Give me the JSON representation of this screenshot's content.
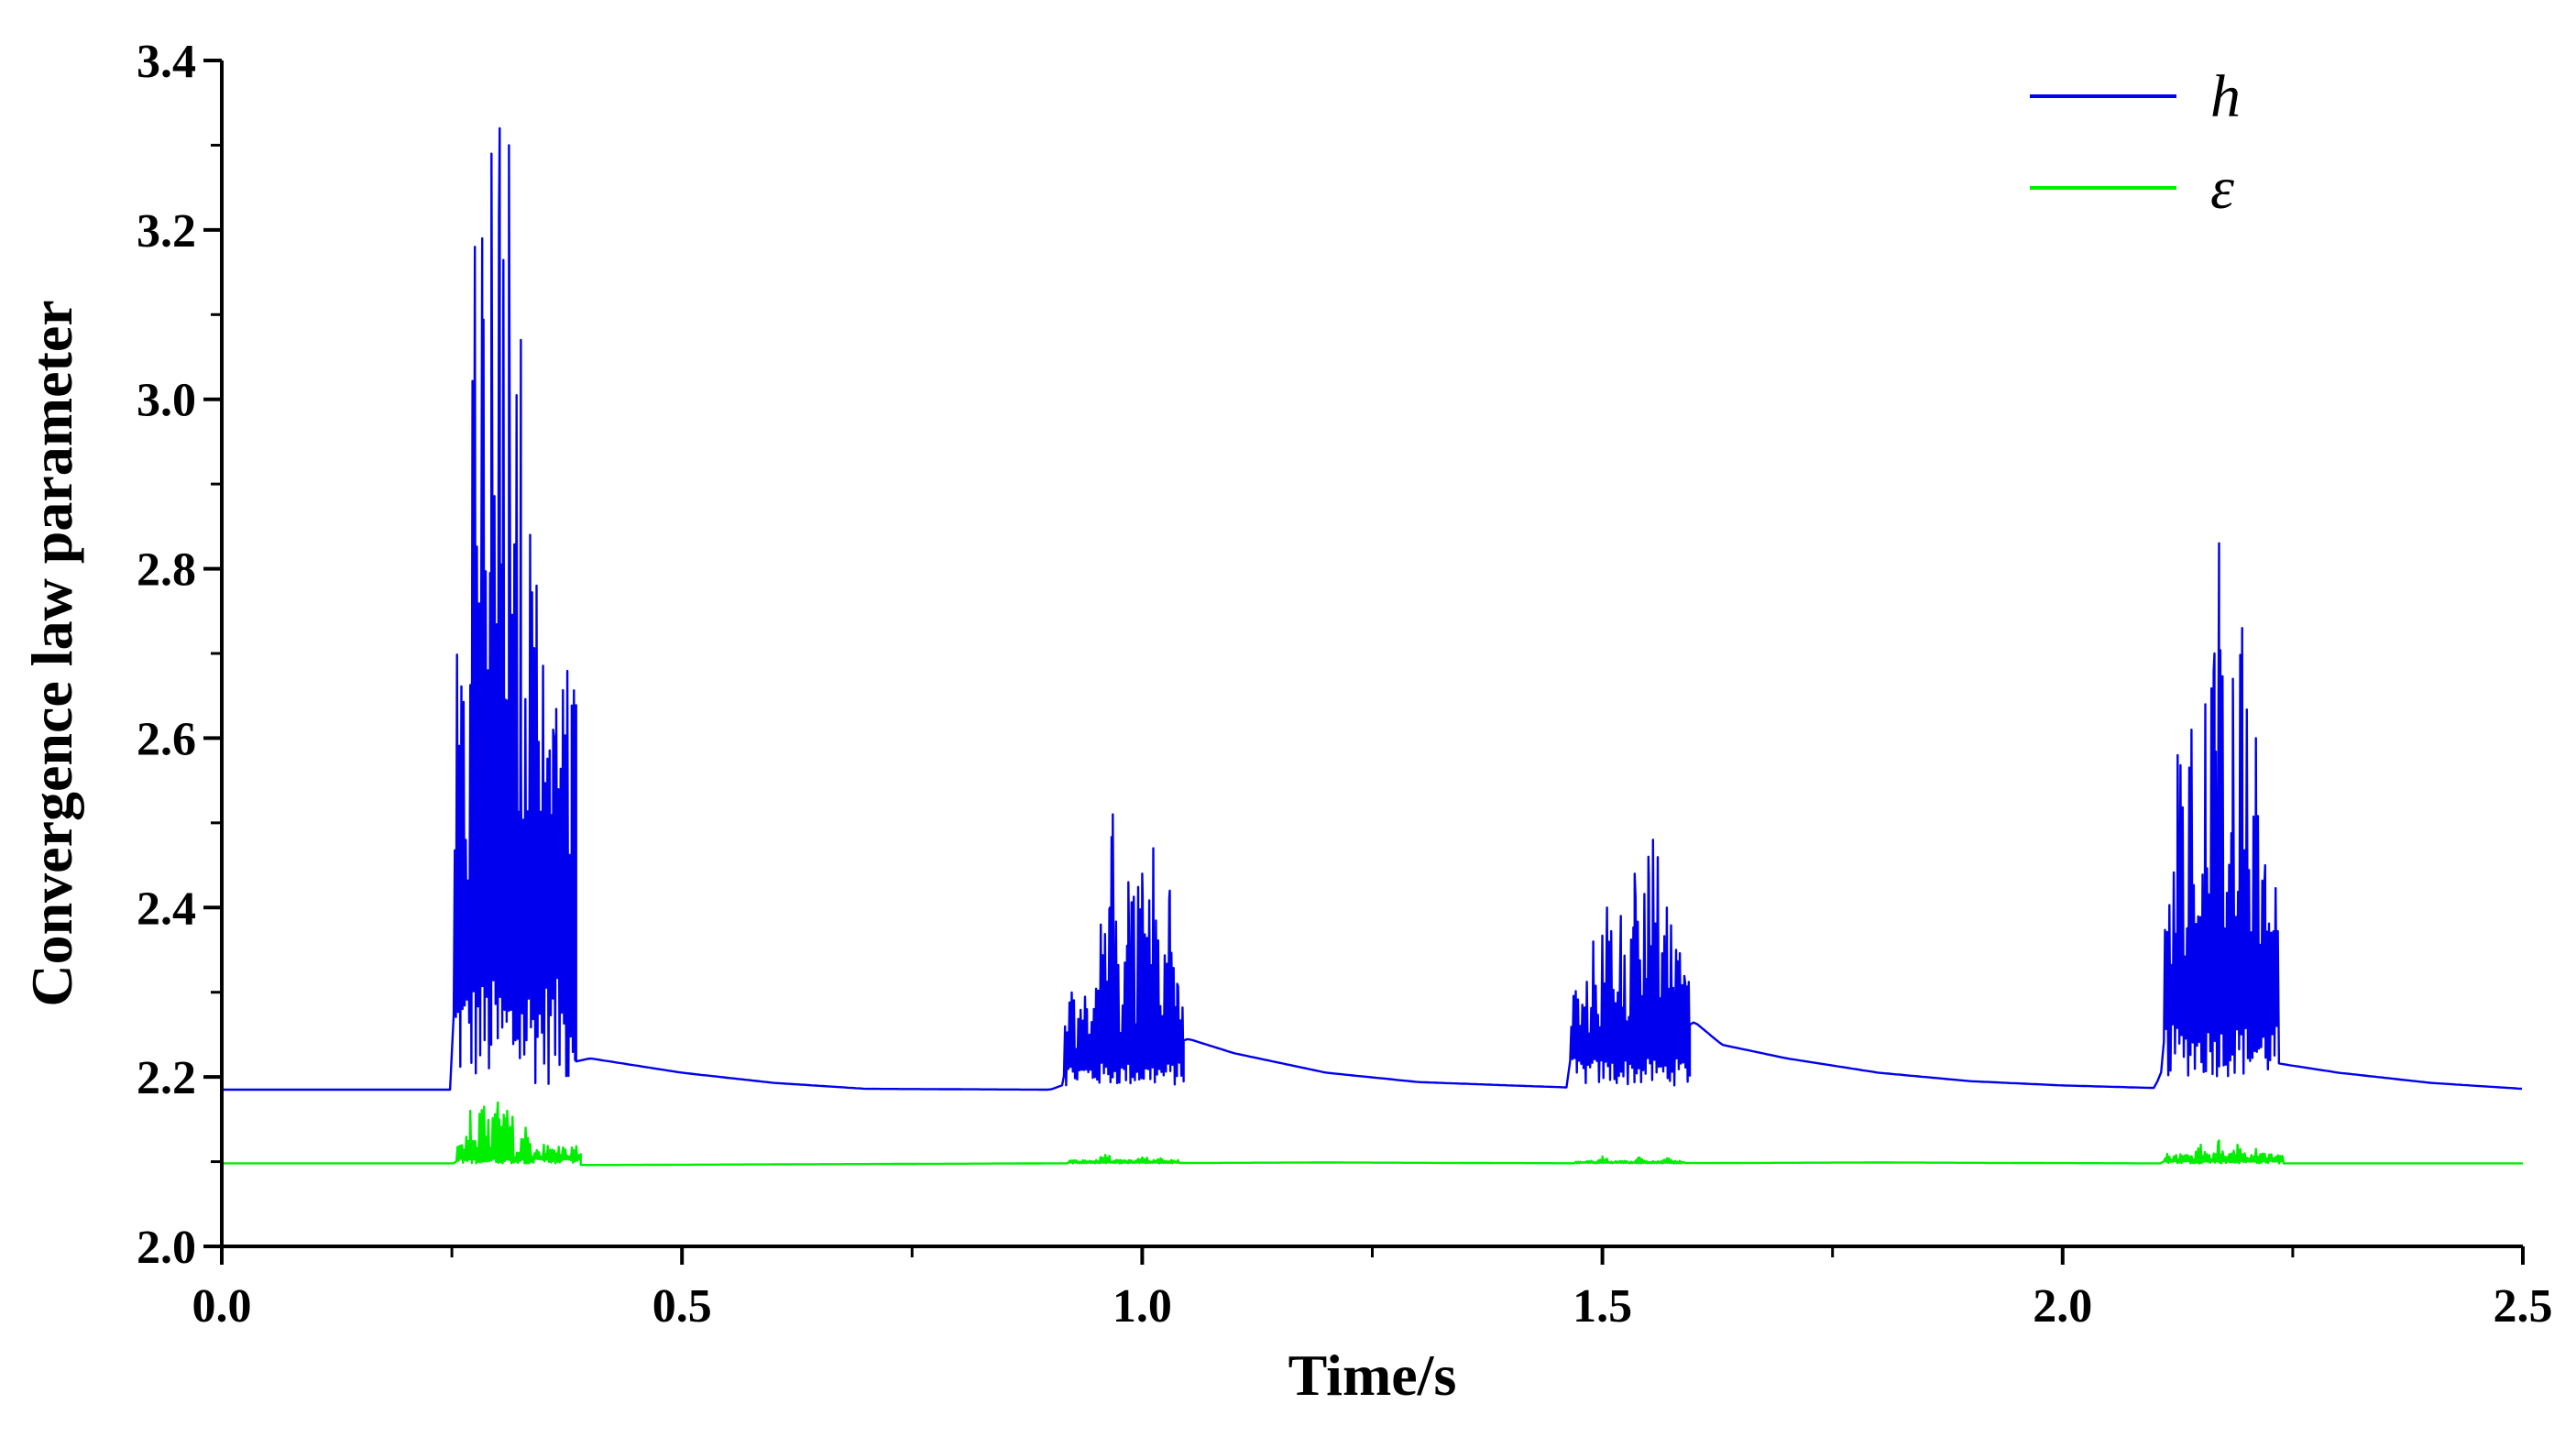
{
  "chart_data": {
    "type": "line",
    "xlabel": "Time/s",
    "ylabel": "Convergence law parameter",
    "xlim": [
      0.0,
      2.5
    ],
    "ylim": [
      2.0,
      3.4
    ],
    "x_ticks": [
      "0.0",
      "0.5",
      "1.0",
      "1.5",
      "2.0",
      "2.5"
    ],
    "y_ticks": [
      "2.0",
      "2.2",
      "2.4",
      "2.6",
      "2.8",
      "3.0",
      "3.2",
      "3.4"
    ],
    "x_tick_values": [
      0.0,
      0.5,
      1.0,
      1.5,
      2.0,
      2.5
    ],
    "y_tick_values": [
      2.0,
      2.2,
      2.4,
      2.6,
      2.8,
      3.0,
      3.2,
      3.4
    ],
    "grid": false,
    "legend_position": "top-right",
    "series": [
      {
        "name": "h",
        "color": "#0000ee",
        "baseline": [
          [
            0.0,
            2.185
          ],
          [
            0.25,
            2.185
          ],
          [
            0.4,
            2.222
          ],
          [
            0.5,
            2.205
          ],
          [
            0.6,
            2.193
          ],
          [
            0.7,
            2.186
          ],
          [
            0.9,
            2.185
          ],
          [
            1.05,
            2.245
          ],
          [
            1.1,
            2.228
          ],
          [
            1.2,
            2.205
          ],
          [
            1.3,
            2.194
          ],
          [
            1.4,
            2.19
          ],
          [
            1.48,
            2.187
          ],
          [
            1.6,
            2.265
          ],
          [
            1.63,
            2.238
          ],
          [
            1.7,
            2.222
          ],
          [
            1.8,
            2.205
          ],
          [
            1.9,
            2.195
          ],
          [
            2.0,
            2.19
          ],
          [
            2.1,
            2.187
          ],
          [
            2.12,
            2.24
          ],
          [
            2.24,
            2.215
          ],
          [
            2.3,
            2.205
          ],
          [
            2.4,
            2.193
          ],
          [
            2.5,
            2.186
          ]
        ],
        "bursts": [
          {
            "start": 0.252,
            "end": 0.385,
            "low": 2.19,
            "mid": 2.7,
            "peaks": [
              [
                0.262,
                2.59
              ],
              [
                0.275,
                3.18
              ],
              [
                0.283,
                3.19
              ],
              [
                0.293,
                3.29
              ],
              [
                0.302,
                3.32
              ],
              [
                0.312,
                3.3
              ],
              [
                0.325,
                3.07
              ],
              [
                0.335,
                2.84
              ],
              [
                0.342,
                2.78
              ],
              [
                0.36,
                2.61
              ],
              [
                0.37,
                2.38
              ],
              [
                0.38,
                2.3
              ]
            ]
          },
          {
            "start": 0.915,
            "end": 1.045,
            "low": 2.19,
            "mid": 2.3,
            "peaks": [
              [
                0.94,
                2.28
              ],
              [
                0.955,
                2.38
              ],
              [
                0.965,
                2.4
              ],
              [
                0.968,
                2.51
              ],
              [
                0.985,
                2.43
              ],
              [
                1.0,
                2.44
              ],
              [
                1.012,
                2.47
              ],
              [
                1.03,
                2.42
              ],
              [
                1.038,
                2.31
              ]
            ]
          },
          {
            "start": 1.465,
            "end": 1.595,
            "low": 2.19,
            "mid": 2.32,
            "peaks": [
              [
                1.49,
                2.36
              ],
              [
                1.505,
                2.4
              ],
              [
                1.52,
                2.39
              ],
              [
                1.535,
                2.44
              ],
              [
                1.55,
                2.46
              ],
              [
                1.555,
                2.48
              ],
              [
                1.57,
                2.4
              ],
              [
                1.58,
                2.35
              ],
              [
                1.59,
                2.31
              ]
            ]
          },
          {
            "start": 2.11,
            "end": 2.235,
            "low": 2.2,
            "mid": 2.45,
            "peaks": [
              [
                2.125,
                2.58
              ],
              [
                2.14,
                2.61
              ],
              [
                2.155,
                2.64
              ],
              [
                2.165,
                2.7
              ],
              [
                2.17,
                2.83
              ],
              [
                2.185,
                2.67
              ],
              [
                2.195,
                2.73
              ],
              [
                2.21,
                2.6
              ],
              [
                2.22,
                2.45
              ],
              [
                2.23,
                2.35
              ]
            ]
          }
        ]
      },
      {
        "name": "ε",
        "color": "#00ee00",
        "baseline": [
          [
            0.0,
            2.098
          ],
          [
            0.25,
            2.098
          ],
          [
            0.4,
            2.096
          ],
          [
            0.9,
            2.098
          ],
          [
            1.2,
            2.099
          ],
          [
            1.5,
            2.098
          ],
          [
            1.8,
            2.099
          ],
          [
            2.1,
            2.098
          ],
          [
            2.5,
            2.098
          ]
        ],
        "bursts": [
          {
            "start": 0.255,
            "end": 0.39,
            "low": 2.098,
            "mid": 2.12,
            "peaks": [
              [
                0.27,
                2.16
              ],
              [
                0.285,
                2.165
              ],
              [
                0.3,
                2.17
              ],
              [
                0.31,
                2.16
              ],
              [
                0.33,
                2.14
              ],
              [
                0.35,
                2.12
              ],
              [
                0.37,
                2.11
              ]
            ]
          },
          {
            "start": 0.92,
            "end": 1.04,
            "low": 2.098,
            "mid": 2.102,
            "peaks": [
              [
                0.96,
                2.108
              ],
              [
                1.0,
                2.105
              ],
              [
                1.02,
                2.104
              ]
            ]
          },
          {
            "start": 1.47,
            "end": 1.59,
            "low": 2.098,
            "mid": 2.101,
            "peaks": [
              [
                1.5,
                2.106
              ],
              [
                1.54,
                2.105
              ],
              [
                1.57,
                2.104
              ]
            ]
          },
          {
            "start": 2.11,
            "end": 2.24,
            "low": 2.098,
            "mid": 2.11,
            "peaks": [
              [
                2.15,
                2.12
              ],
              [
                2.17,
                2.125
              ],
              [
                2.19,
                2.12
              ],
              [
                2.21,
                2.115
              ]
            ]
          }
        ]
      }
    ]
  }
}
